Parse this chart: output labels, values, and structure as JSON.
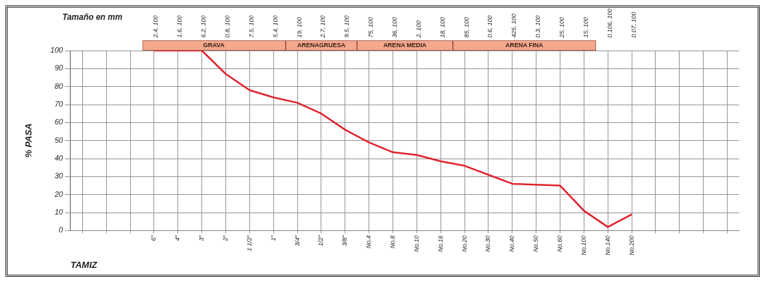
{
  "chart_data": {
    "type": "line",
    "xlabel": "TAMIZ",
    "ylabel": "% PASA",
    "categories": [
      null,
      null,
      null,
      "6\"",
      "4\"",
      "3\"",
      "2\"",
      "1 1/2\"",
      "1\"",
      "3/4\"",
      "1/2\"",
      "3/8\"",
      "No.4",
      "No.8",
      "No.10",
      "No.16",
      "No.20",
      "No.30",
      "No.40",
      "No.50",
      "No.60",
      "No.100",
      "No.140",
      "No.200",
      null,
      null,
      null,
      null
    ],
    "series": [
      {
        "color": "#e0202a",
        "values": [
          null,
          null,
          null,
          100,
          100,
          100,
          87,
          78,
          74,
          71,
          65,
          56,
          49,
          43.5,
          42,
          38.5,
          36,
          31,
          26,
          25.5,
          25,
          11,
          2,
          9,
          null,
          null,
          null,
          null
        ]
      }
    ],
    "ylim": [
      0,
      100
    ],
    "yticks": [
      0,
      10,
      20,
      30,
      40,
      50,
      60,
      70,
      80,
      90,
      100
    ],
    "annotations": [
      "Tamaño en mm",
      "2.4, 100",
      "1.6, 100",
      "6.2, 100",
      "0.8, 100",
      "7.5, 100",
      "5.4, 100",
      "19, 100",
      "2.7, 100",
      "9.5, 100",
      "75, 100",
      "36, 100",
      "2, 100",
      "18, 100",
      "85, 100",
      "0.6, 100",
      "425, 100",
      "0.3, 100",
      "25, 100",
      "15, 100",
      "0.106, 100",
      "0.07, 100",
      "GRAVA",
      "ARENAGRUESA",
      "ARENA MEDIA",
      "ARENA FINA"
    ],
    "grid": true,
    "marker": "none",
    "line_style": "solid",
    "legend": false
  }
}
